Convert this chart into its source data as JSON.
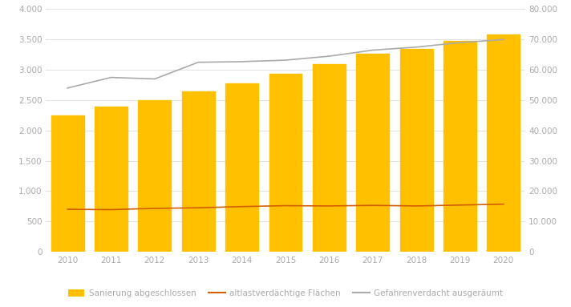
{
  "years": [
    2010,
    2011,
    2012,
    2013,
    2014,
    2015,
    2016,
    2017,
    2018,
    2019,
    2020
  ],
  "bar_values": [
    2250,
    2390,
    2500,
    2640,
    2780,
    2930,
    3090,
    3270,
    3340,
    3480,
    3590
  ],
  "bar_color": "#FFC000",
  "bar_edgecolor": "#FFC000",
  "line_altlast": [
    700,
    695,
    715,
    725,
    745,
    760,
    755,
    765,
    755,
    770,
    785
  ],
  "line_altlast_color": "#D45F00",
  "line_gefahr": [
    54000,
    57500,
    57000,
    62500,
    62700,
    63200,
    64500,
    66500,
    67500,
    69000,
    70000
  ],
  "line_gefahr_color": "#AAAAAA",
  "left_ylim": [
    0,
    4000
  ],
  "right_ylim": [
    0,
    80000
  ],
  "left_yticks": [
    0,
    500,
    1000,
    1500,
    2000,
    2500,
    3000,
    3500,
    4000
  ],
  "right_yticks": [
    0,
    10000,
    20000,
    30000,
    40000,
    50000,
    60000,
    70000,
    80000
  ],
  "legend_labels": [
    "Sanierung abgeschlossen",
    "altlastverdächtige Flächen",
    "Gefahrenverdacht ausgeräumt"
  ],
  "background_color": "#ffffff",
  "grid_color": "#dddddd",
  "tick_color": "#aaaaaa",
  "tick_fontsize": 7.5,
  "legend_fontsize": 7.5
}
